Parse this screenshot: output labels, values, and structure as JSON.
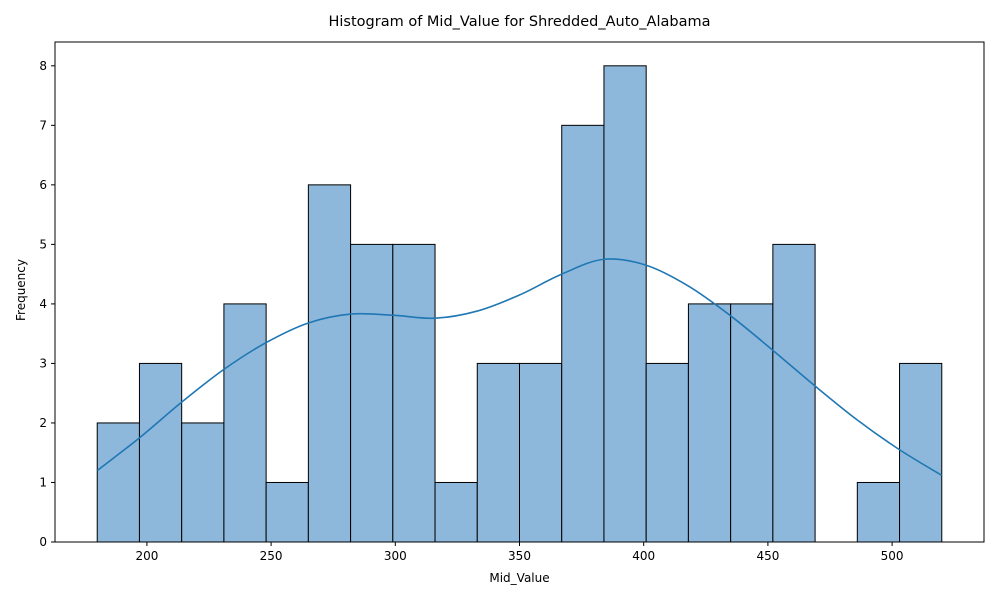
{
  "chart_data": {
    "type": "bar",
    "title": "Histogram of Mid_Value for Shredded_Auto_Alabama",
    "xlabel": "Mid_Value",
    "ylabel": "Frequency",
    "xlim": [
      163,
      537
    ],
    "ylim": [
      0,
      8.4
    ],
    "bin_start": 180,
    "bin_end": 520,
    "values": [
      2,
      3,
      2,
      4,
      1,
      6,
      5,
      5,
      1,
      3,
      3,
      7,
      8,
      3,
      4,
      4,
      5,
      0,
      1,
      3
    ],
    "xticks": [
      200,
      250,
      300,
      350,
      400,
      450,
      500
    ],
    "yticks": [
      0,
      1,
      2,
      3,
      4,
      5,
      6,
      7,
      8
    ],
    "kde": {
      "x": [
        180,
        197,
        214,
        231,
        248,
        265,
        282,
        299,
        316,
        333,
        350,
        367,
        384,
        401,
        418,
        435,
        452,
        469,
        486,
        503,
        520
      ],
      "y": [
        1.2,
        1.75,
        2.35,
        2.9,
        3.35,
        3.68,
        3.83,
        3.81,
        3.76,
        3.88,
        4.15,
        4.5,
        4.75,
        4.65,
        4.3,
        3.8,
        3.22,
        2.62,
        2.05,
        1.55,
        1.12
      ]
    },
    "colors": {
      "bar_fill": "#8db8db",
      "bar_edge": "#000000",
      "kde_line": "#1f77b4"
    },
    "grid": false,
    "legend": "none"
  }
}
